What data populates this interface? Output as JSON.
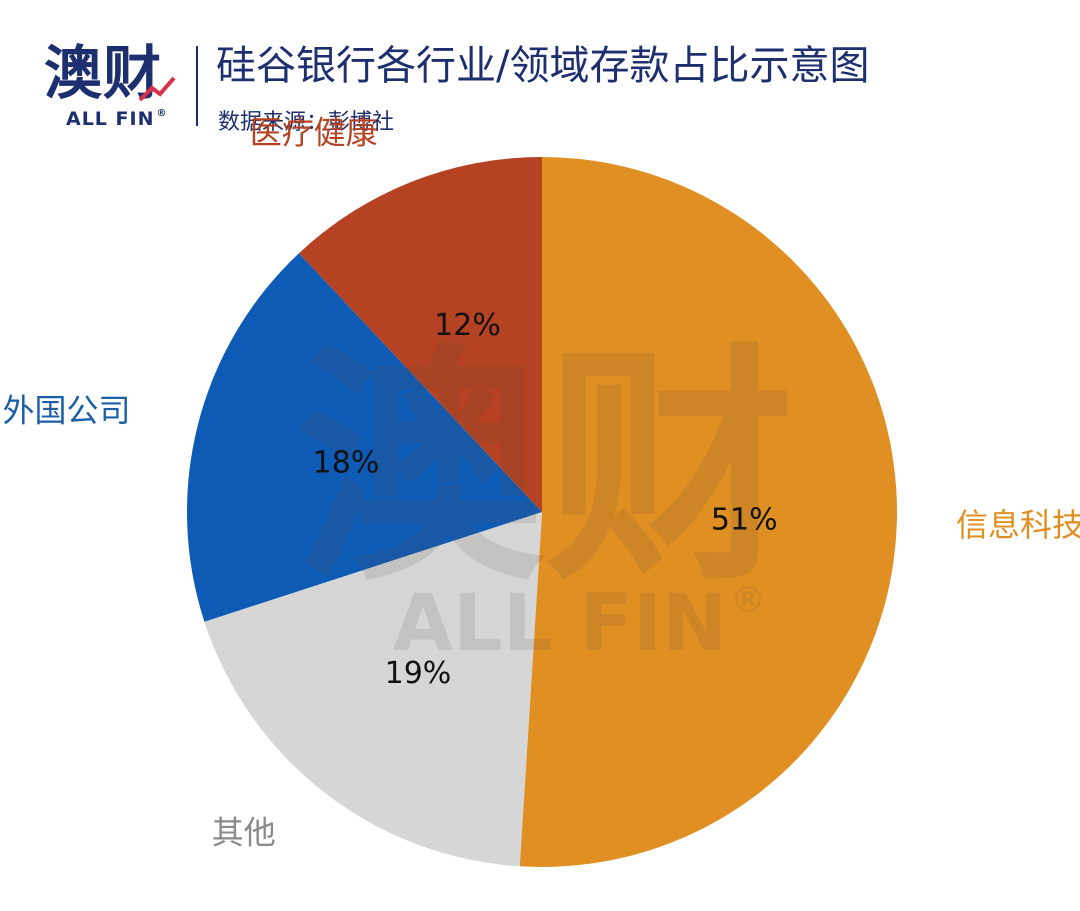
{
  "header": {
    "logo_cn": "澳财",
    "logo_en": "ALL FIN",
    "logo_reg": "®",
    "title": "硅谷银行各行业/领域存款占比示意图",
    "source": "数据来源：彭博社"
  },
  "watermark": {
    "text_cn": "澳财",
    "text_en": "ALL FIN",
    "reg": "®"
  },
  "chart_data": {
    "type": "pie",
    "title": "硅谷银行各行业/领域存款占比示意图",
    "start_angle_deg": 0,
    "direction": "clockwise",
    "slices": [
      {
        "label": "信息科技",
        "value": 51,
        "value_label": "51%",
        "color": "#e08f23",
        "label_color": "#e08f23"
      },
      {
        "label": "其他",
        "value": 19,
        "value_label": "19%",
        "color": "#d6d6d6",
        "label_color": "#8a8a8a"
      },
      {
        "label": "外国公司",
        "value": 18,
        "value_label": "18%",
        "color": "#0e5bb5",
        "label_color": "#1a5fa8"
      },
      {
        "label": "医疗健康",
        "value": 12,
        "value_label": "12%",
        "color": "#b54222",
        "label_color": "#b54222"
      }
    ]
  }
}
